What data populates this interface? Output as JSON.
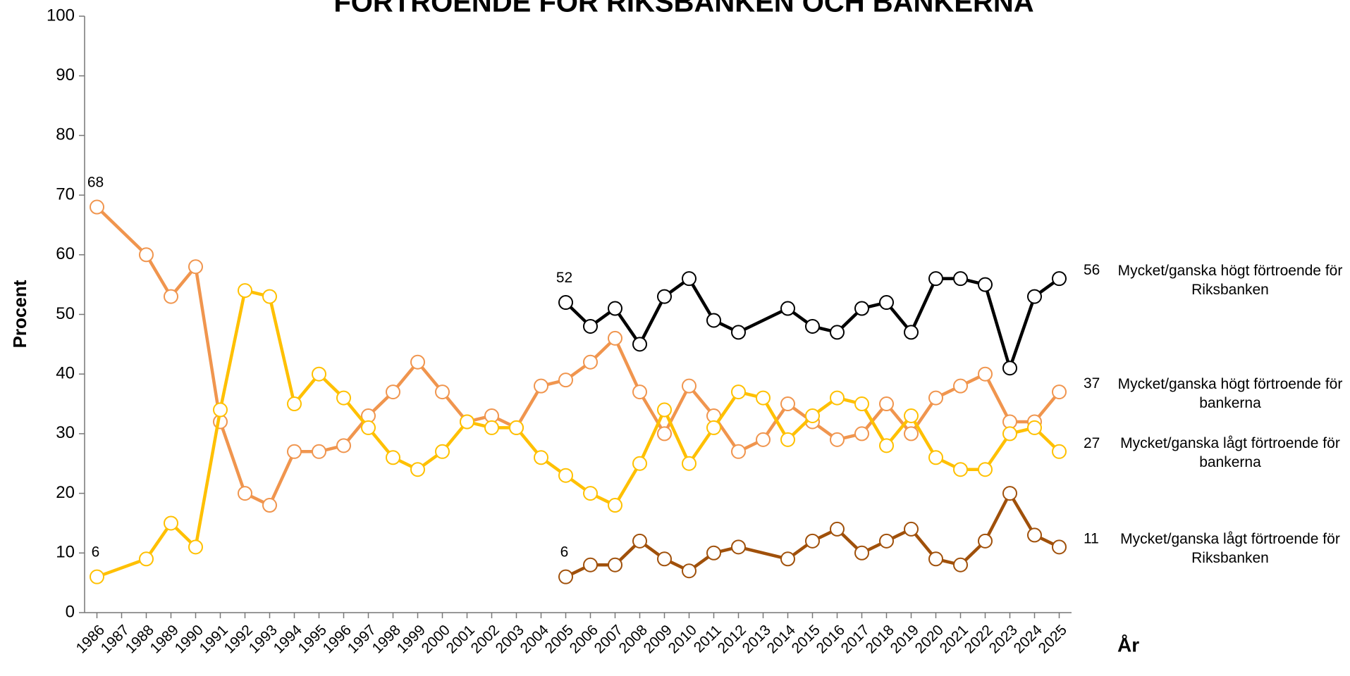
{
  "chart_data": {
    "type": "line",
    "title": "FÖRTROENDE FÖR RIKSBANKEN OCH BANKERNA",
    "y_label": "Procent",
    "x_label": "År",
    "xlim": [
      1985.5,
      2025.5
    ],
    "xticks": [
      1986,
      1987,
      1988,
      1989,
      1990,
      1991,
      1992,
      1993,
      1994,
      1995,
      1996,
      1997,
      1998,
      1999,
      2000,
      2001,
      2002,
      2003,
      2004,
      2005,
      2006,
      2007,
      2008,
      2009,
      2010,
      2011,
      2012,
      2013,
      2014,
      2015,
      2016,
      2017,
      2018,
      2019,
      2020,
      2021,
      2022,
      2023,
      2024,
      2025
    ],
    "ylim": [
      0,
      100
    ],
    "yticks": [
      0,
      10,
      20,
      30,
      40,
      50,
      60,
      70,
      80,
      90,
      100
    ],
    "series": [
      {
        "name": "Mycket/ganska högt förtroende för Riksbanken",
        "color": "#000000",
        "x": [
          2005,
          2006,
          2007,
          2008,
          2009,
          2010,
          2011,
          2012,
          2014,
          2015,
          2016,
          2017,
          2018,
          2019,
          2020,
          2021,
          2022,
          2023,
          2024,
          2025
        ],
        "values": [
          52,
          48,
          51,
          45,
          53,
          56,
          49,
          47,
          51,
          48,
          47,
          51,
          52,
          47,
          56,
          56,
          55,
          41,
          53,
          56
        ]
      },
      {
        "name": "Mycket/ganska högt förtroende för bankerna",
        "color": "#F0954E",
        "x": [
          1986,
          1988,
          1989,
          1990,
          1991,
          1992,
          1993,
          1994,
          1995,
          1996,
          1997,
          1998,
          1999,
          2000,
          2001,
          2002,
          2003,
          2004,
          2005,
          2006,
          2007,
          2008,
          2009,
          2010,
          2011,
          2012,
          2013,
          2014,
          2015,
          2016,
          2017,
          2018,
          2019,
          2020,
          2021,
          2022,
          2023,
          2024,
          2025
        ],
        "values": [
          68,
          60,
          53,
          58,
          32,
          20,
          18,
          27,
          27,
          28,
          33,
          37,
          42,
          37,
          32,
          33,
          31,
          38,
          39,
          42,
          46,
          37,
          30,
          38,
          33,
          27,
          29,
          35,
          32,
          29,
          30,
          35,
          30,
          36,
          38,
          40,
          32,
          32,
          37
        ]
      },
      {
        "name": "Mycket/ganska lågt förtroende för bankerna",
        "color": "#FFC000",
        "x": [
          1986,
          1988,
          1989,
          1990,
          1991,
          1992,
          1993,
          1994,
          1995,
          1996,
          1997,
          1998,
          1999,
          2000,
          2001,
          2002,
          2003,
          2004,
          2005,
          2006,
          2007,
          2008,
          2009,
          2010,
          2011,
          2012,
          2013,
          2014,
          2015,
          2016,
          2017,
          2018,
          2019,
          2020,
          2021,
          2022,
          2023,
          2024,
          2025
        ],
        "values": [
          6,
          9,
          15,
          11,
          34,
          54,
          53,
          35,
          40,
          36,
          31,
          26,
          24,
          27,
          32,
          31,
          31,
          26,
          23,
          20,
          18,
          25,
          34,
          25,
          31,
          37,
          36,
          29,
          33,
          36,
          35,
          28,
          33,
          26,
          24,
          24,
          30,
          31,
          27
        ]
      },
      {
        "name": "Mycket/ganska lågt förtroende för Riksbanken",
        "color": "#A0500A",
        "x": [
          2005,
          2006,
          2007,
          2008,
          2009,
          2010,
          2011,
          2012,
          2014,
          2015,
          2016,
          2017,
          2018,
          2019,
          2020,
          2021,
          2022,
          2023,
          2024,
          2025
        ],
        "values": [
          6,
          8,
          8,
          12,
          9,
          7,
          10,
          11,
          9,
          12,
          14,
          10,
          12,
          14,
          9,
          8,
          12,
          20,
          13,
          11
        ]
      }
    ]
  }
}
